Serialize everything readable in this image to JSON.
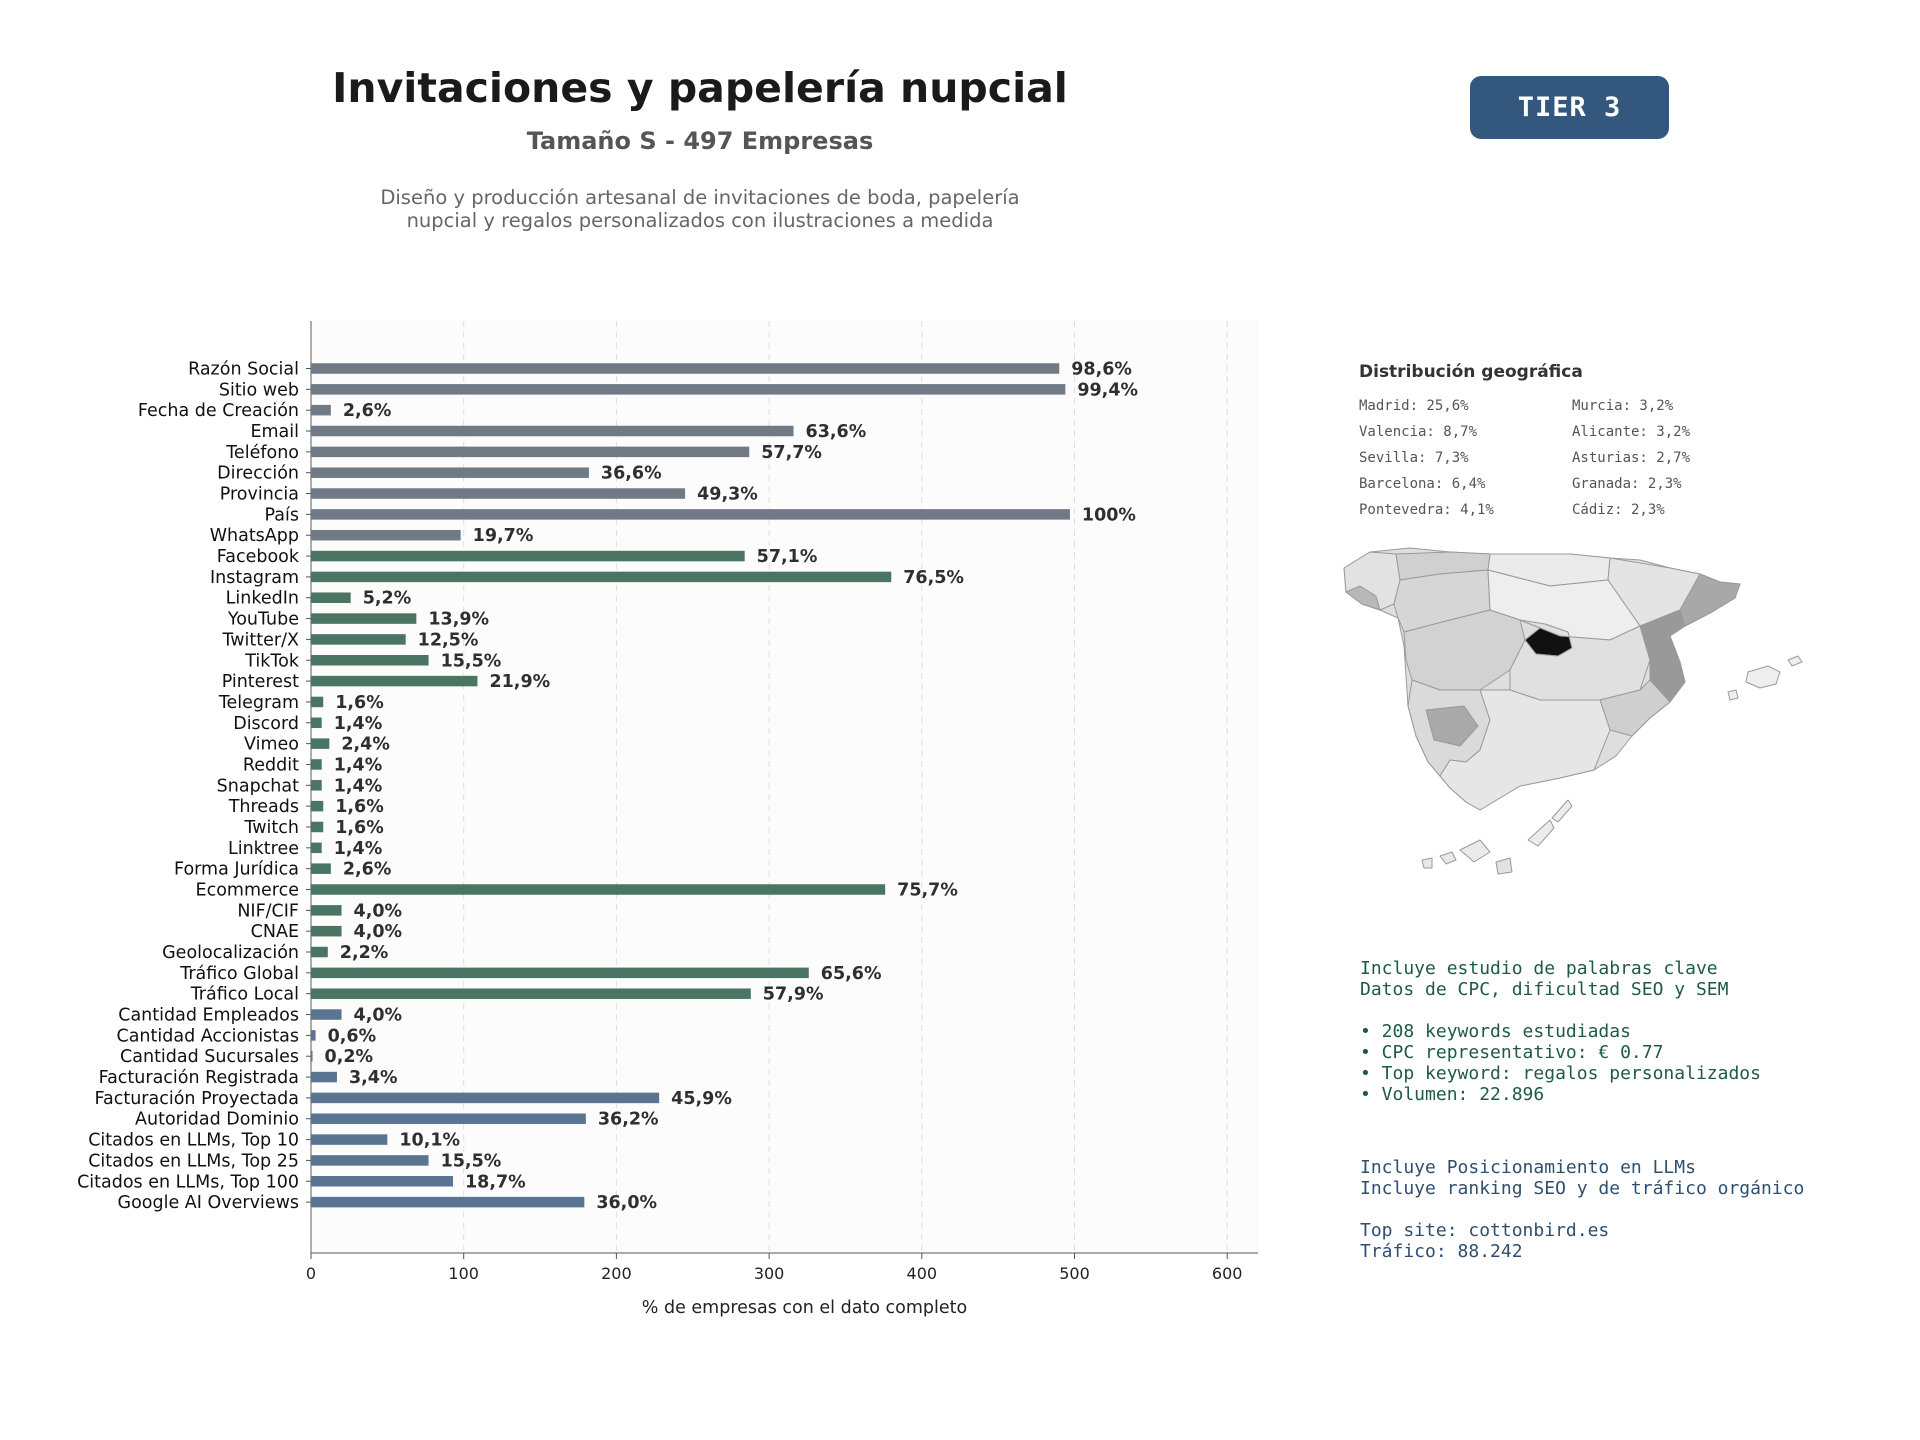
{
  "header": {
    "title": "Invitaciones y papelería nupcial",
    "subtitle": "Tamaño S - 497 Empresas",
    "description_line1": "Diseño y producción artesanal de invitaciones de boda, papelería",
    "description_line2": "nupcial y regalos personalizados con ilustraciones a medida",
    "tier": "TIER 3"
  },
  "chart_data": {
    "type": "bar",
    "orientation": "horizontal",
    "xlabel": "% de empresas con el dato completo",
    "xlim": [
      0,
      620
    ],
    "xticks": [
      0,
      100,
      200,
      300,
      400,
      500,
      600
    ],
    "grid": "vertical dashed",
    "categories": [
      "Razón Social",
      "Sitio web",
      "Fecha de Creación",
      "Email",
      "Teléfono",
      "Dirección",
      "Provincia",
      "País",
      "WhatsApp",
      "Facebook",
      "Instagram",
      "LinkedIn",
      "YouTube",
      "Twitter/X",
      "TikTok",
      "Pinterest",
      "Telegram",
      "Discord",
      "Vimeo",
      "Reddit",
      "Snapchat",
      "Threads",
      "Twitch",
      "Linktree",
      "Forma Jurídica",
      "Ecommerce",
      "NIF/CIF",
      "CNAE",
      "Geolocalización",
      "Tráfico Global",
      "Tráfico Local",
      "Cantidad Empleados",
      "Cantidad Accionistas",
      "Cantidad Sucursales",
      "Facturación Registrada",
      "Facturación Proyectada",
      "Autoridad Dominio",
      "Citados en LLMs, Top 10",
      "Citados en LLMs, Top 25",
      "Citados en LLMs, Top 100",
      "Google AI Overviews"
    ],
    "values": [
      490,
      494,
      13,
      316,
      287,
      182,
      245,
      497,
      98,
      284,
      380,
      26,
      69,
      62,
      77,
      109,
      8,
      7,
      12,
      7,
      7,
      8,
      8,
      7,
      13,
      376,
      20,
      20,
      11,
      326,
      288,
      20,
      3,
      1,
      17,
      228,
      180,
      50,
      77,
      93,
      179
    ],
    "labels": [
      "98,6%",
      "99,4%",
      "2,6%",
      "63,6%",
      "57,7%",
      "36,6%",
      "49,3%",
      "100%",
      "19,7%",
      "57,1%",
      "76,5%",
      "5,2%",
      "13,9%",
      "12,5%",
      "15,5%",
      "21,9%",
      "1,6%",
      "1,4%",
      "2,4%",
      "1,4%",
      "1,4%",
      "1,6%",
      "1,6%",
      "1,4%",
      "2,6%",
      "75,7%",
      "4,0%",
      "4,0%",
      "2,2%",
      "65,6%",
      "57,9%",
      "4,0%",
      "0,6%",
      "0,2%",
      "3,4%",
      "45,9%",
      "36,2%",
      "10,1%",
      "15,5%",
      "18,7%",
      "36,0%"
    ],
    "groups": [
      "gray",
      "gray",
      "gray",
      "gray",
      "gray",
      "gray",
      "gray",
      "gray",
      "gray",
      "green",
      "green",
      "green",
      "green",
      "green",
      "green",
      "green",
      "green",
      "green",
      "green",
      "green",
      "green",
      "green",
      "green",
      "green",
      "green",
      "green",
      "green",
      "green",
      "green",
      "green",
      "green",
      "blue",
      "blue",
      "blue",
      "blue",
      "blue",
      "blue",
      "blue",
      "blue",
      "blue",
      "blue"
    ],
    "colors": {
      "gray": "#6f7a84",
      "green": "#4a7562",
      "blue": "#5a7591"
    }
  },
  "geo": {
    "title": "Distribución geográfica",
    "items": [
      "Madrid: 25,6%",
      "Valencia: 8,7%",
      "Sevilla: 7,3%",
      "Barcelona: 6,4%",
      "Pontevedra: 4,1%",
      "Murcia: 3,2%",
      "Alicante: 3,2%",
      "Asturias: 2,7%",
      "Granada: 2,3%",
      "Cádiz: 2,3%"
    ]
  },
  "keywords": {
    "line1": "Incluye estudio de palabras clave",
    "line2": "Datos de CPC, dificultad SEO y SEM",
    "bullet1": "• 208 keywords estudiadas",
    "bullet2": "• CPC representativo: € 0.77",
    "bullet3": "• Top keyword: regalos personalizados",
    "bullet4": "• Volumen: 22.896"
  },
  "llm": {
    "line1": "Incluye Posicionamiento en LLMs",
    "line2": "Incluye ranking SEO y de tráfico orgánico",
    "top_site": "Top site: cottonbird.es",
    "traffic": "Tráfico: 88.242"
  }
}
